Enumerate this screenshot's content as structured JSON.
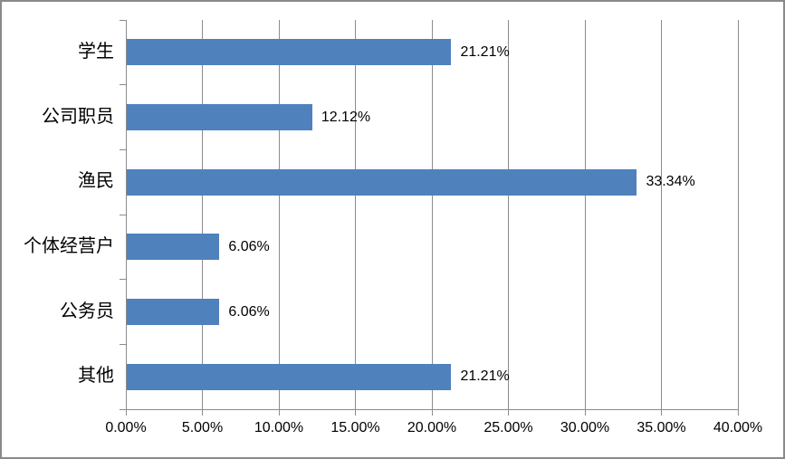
{
  "chart_data": {
    "type": "bar",
    "orientation": "horizontal",
    "title": "",
    "xlabel": "",
    "ylabel": "",
    "categories": [
      "学生",
      "公司职员",
      "渔民",
      "个体经营户",
      "公务员",
      "其他"
    ],
    "values": [
      21.21,
      12.12,
      33.34,
      6.06,
      6.06,
      21.21
    ],
    "value_labels": [
      "21.21%",
      "12.12%",
      "33.34%",
      "6.06%",
      "6.06%",
      "21.21%"
    ],
    "xlim": [
      0,
      40
    ],
    "x_ticks": [
      0,
      5,
      10,
      15,
      20,
      25,
      30,
      35,
      40
    ],
    "x_tick_labels": [
      "0.00%",
      "5.00%",
      "10.00%",
      "15.00%",
      "20.00%",
      "25.00%",
      "30.00%",
      "35.00%",
      "40.00%"
    ],
    "grid": true,
    "legend": false,
    "colors": {
      "bar": "#4F81BD",
      "gridline": "#8C8C8C",
      "axis": "#8C8C8C",
      "frame_border": "#898989",
      "text": "#000000",
      "background": "#FFFFFF"
    }
  }
}
